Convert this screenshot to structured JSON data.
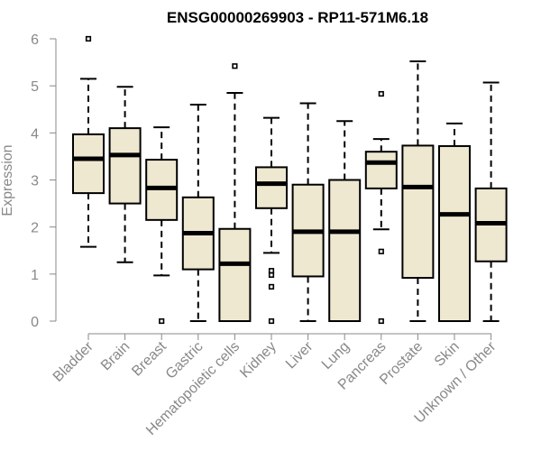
{
  "chart_data": {
    "type": "boxplot",
    "title": "ENSG00000269903 - RP11-571M6.18",
    "xlabel": "",
    "ylabel": "Expression",
    "ylim": [
      0,
      6
    ],
    "yticks": [
      0,
      1,
      2,
      3,
      4,
      5,
      6
    ],
    "box_color": "#efe8d0",
    "series": [
      {
        "name": "Bladder",
        "whisker_low": 1.58,
        "q1": 2.72,
        "median": 3.45,
        "q3": 3.97,
        "whisker_high": 5.15,
        "outliers": [
          6.0
        ]
      },
      {
        "name": "Brain",
        "whisker_low": 1.25,
        "q1": 2.5,
        "median": 3.53,
        "q3": 4.1,
        "whisker_high": 4.98,
        "outliers": []
      },
      {
        "name": "Breast",
        "whisker_low": 0.97,
        "q1": 2.15,
        "median": 2.83,
        "q3": 3.43,
        "whisker_high": 4.12,
        "outliers": [
          0.0
        ]
      },
      {
        "name": "Gastric",
        "whisker_low": 0.0,
        "q1": 1.1,
        "median": 1.87,
        "q3": 2.63,
        "whisker_high": 4.6,
        "outliers": []
      },
      {
        "name": "Hematopoietic cells",
        "whisker_low": 0.0,
        "q1": 0.0,
        "median": 1.22,
        "q3": 1.96,
        "whisker_high": 4.85,
        "outliers": [
          5.42
        ]
      },
      {
        "name": "Kidney",
        "whisker_low": 1.45,
        "q1": 2.4,
        "median": 2.92,
        "q3": 3.27,
        "whisker_high": 4.32,
        "outliers": [
          1.07,
          0.98,
          0.73,
          0.0
        ]
      },
      {
        "name": "Liver",
        "whisker_low": 0.0,
        "q1": 0.95,
        "median": 1.9,
        "q3": 2.9,
        "whisker_high": 4.63,
        "outliers": []
      },
      {
        "name": "Lung",
        "whisker_low": 0.0,
        "q1": 0.0,
        "median": 1.9,
        "q3": 3.0,
        "whisker_high": 4.25,
        "outliers": []
      },
      {
        "name": "Pancreas",
        "whisker_low": 1.95,
        "q1": 2.82,
        "median": 3.37,
        "q3": 3.6,
        "whisker_high": 3.87,
        "outliers": [
          4.83,
          1.48,
          0.0
        ]
      },
      {
        "name": "Prostate",
        "whisker_low": 0.0,
        "q1": 0.92,
        "median": 2.85,
        "q3": 3.73,
        "whisker_high": 5.52,
        "outliers": []
      },
      {
        "name": "Skin",
        "whisker_low": 0.0,
        "q1": 0.0,
        "median": 2.27,
        "q3": 3.72,
        "whisker_high": 4.2,
        "outliers": []
      },
      {
        "name": "Unknown / Other",
        "whisker_low": 0.0,
        "q1": 1.27,
        "median": 2.08,
        "q3": 2.82,
        "whisker_high": 5.07,
        "outliers": []
      }
    ]
  }
}
